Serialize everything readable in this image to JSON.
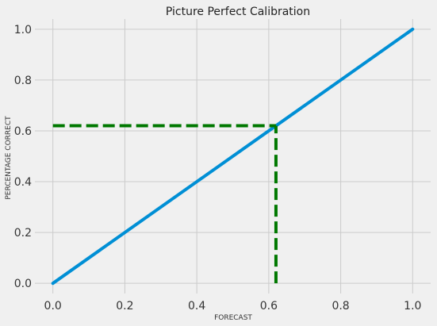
{
  "chart_data": {
    "type": "line",
    "title": "Picture Perfect Calibration",
    "xlabel": "FORECAST",
    "ylabel": "PERCENTAGE CORRECT",
    "xlim": [
      -0.05,
      1.05
    ],
    "ylim": [
      -0.04,
      1.04
    ],
    "xticks": [
      0.0,
      0.2,
      0.4,
      0.6,
      0.8,
      1.0
    ],
    "yticks": [
      0.0,
      0.2,
      0.4,
      0.6,
      0.8,
      1.0
    ],
    "xtick_labels": [
      "0.0",
      "0.2",
      "0.4",
      "0.6",
      "0.8",
      "1.0"
    ],
    "ytick_labels": [
      "0.0",
      "0.2",
      "0.4",
      "0.6",
      "0.8",
      "1.0"
    ],
    "grid": true,
    "series": [
      {
        "id": "calibration-line",
        "style": "solid",
        "color": "#008fd5",
        "x": [
          0.0,
          1.0
        ],
        "y": [
          0.0,
          1.0
        ]
      },
      {
        "id": "reference-horizontal",
        "style": "dashed",
        "color": "#007800",
        "x": [
          0.0,
          0.62
        ],
        "y": [
          0.62,
          0.62
        ]
      },
      {
        "id": "reference-vertical",
        "style": "dashed",
        "color": "#007800",
        "x": [
          0.62,
          0.62
        ],
        "y": [
          0.0,
          0.62
        ]
      }
    ]
  }
}
